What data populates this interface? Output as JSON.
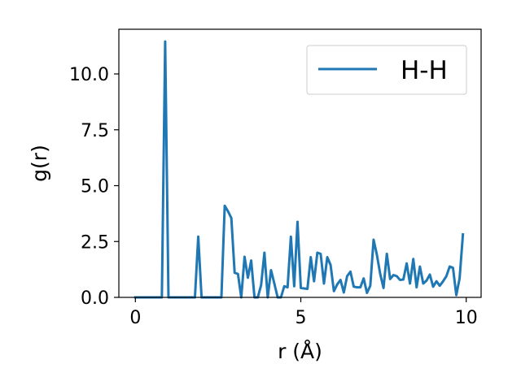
{
  "chart_data": {
    "type": "line",
    "xlabel": "r (Å)",
    "ylabel": "g(r)",
    "xlim": [
      -0.5,
      10.45
    ],
    "ylim": [
      0,
      12.0
    ],
    "xticks": [
      0,
      5,
      10
    ],
    "yticks": [
      0,
      2.5,
      5,
      7.5,
      10
    ],
    "xtick_labels": [
      "0",
      "5",
      "10"
    ],
    "ytick_labels": [
      "0.0",
      "2.5",
      "5.0",
      "7.5",
      "10.0"
    ],
    "grid": false,
    "legend_position": "top-right",
    "series": [
      {
        "name": "H-H",
        "color": "#1f77b4",
        "x": [
          0.0,
          0.1,
          0.2,
          0.3,
          0.4,
          0.5,
          0.6,
          0.7,
          0.8,
          0.9,
          1.0,
          1.1,
          1.2,
          1.3,
          1.4,
          1.5,
          1.6,
          1.7,
          1.8,
          1.9,
          2.0,
          2.1,
          2.2,
          2.3,
          2.4,
          2.5,
          2.6,
          2.7,
          2.8,
          2.9,
          3.0,
          3.1,
          3.2,
          3.3,
          3.4,
          3.5,
          3.6,
          3.7,
          3.8,
          3.9,
          4.0,
          4.1,
          4.2,
          4.3,
          4.4,
          4.5,
          4.6,
          4.7,
          4.8,
          4.9,
          5.0,
          5.1,
          5.2,
          5.3,
          5.4,
          5.5,
          5.6,
          5.7,
          5.8,
          5.9,
          6.0,
          6.1,
          6.2,
          6.3,
          6.4,
          6.5,
          6.6,
          6.7,
          6.8,
          6.9,
          7.0,
          7.1,
          7.2,
          7.3,
          7.4,
          7.5,
          7.6,
          7.7,
          7.8,
          7.9,
          8.0,
          8.1,
          8.2,
          8.3,
          8.4,
          8.5,
          8.6,
          8.7,
          8.8,
          8.9,
          9.0,
          9.1,
          9.2,
          9.3,
          9.4,
          9.5,
          9.6,
          9.7,
          9.8,
          9.9
        ],
        "y": [
          0.0,
          0.0,
          0.0,
          0.0,
          0.0,
          0.0,
          0.0,
          0.0,
          0.0,
          11.45,
          0.0,
          0.0,
          0.0,
          0.0,
          0.0,
          0.0,
          0.0,
          0.0,
          0.0,
          2.72,
          0.0,
          0.0,
          0.0,
          0.0,
          0.0,
          0.0,
          0.0,
          4.1,
          3.85,
          3.55,
          1.1,
          1.05,
          0.0,
          1.82,
          0.88,
          1.65,
          0.0,
          0.0,
          0.55,
          2.0,
          0.0,
          1.22,
          0.62,
          0.0,
          0.0,
          0.5,
          0.45,
          2.72,
          0.5,
          3.38,
          0.42,
          0.4,
          0.38,
          1.8,
          0.72,
          2.0,
          1.95,
          0.62,
          1.8,
          1.45,
          0.28,
          0.58,
          0.78,
          0.22,
          0.95,
          1.15,
          0.48,
          0.45,
          0.45,
          0.85,
          0.2,
          0.52,
          2.58,
          1.9,
          1.05,
          0.42,
          1.95,
          0.82,
          1.0,
          0.95,
          0.78,
          0.8,
          1.52,
          0.62,
          1.72,
          0.45,
          1.38,
          0.62,
          0.75,
          1.02,
          0.48,
          0.72,
          0.52,
          0.72,
          0.95,
          1.38,
          1.32,
          0.1,
          0.85,
          2.82
        ]
      }
    ]
  }
}
